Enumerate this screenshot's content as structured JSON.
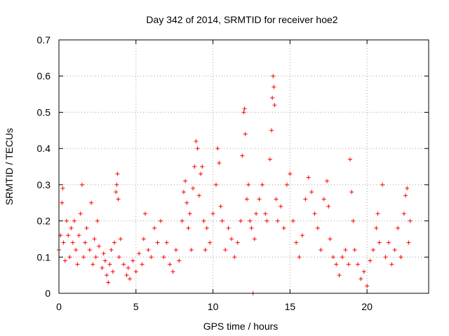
{
  "chart_data": {
    "type": "scatter",
    "title": "Day 342 of 2014, SRMTID for receiver hoe2",
    "xlabel": "GPS time / hours",
    "ylabel": "SRMTID / TECUs",
    "xlim": [
      0,
      24
    ],
    "ylim": [
      0,
      0.7
    ],
    "xticks": [
      0,
      5,
      10,
      15,
      20
    ],
    "xtick_labels": [
      "0",
      "5",
      "10",
      "15",
      "20"
    ],
    "yticks": [
      0,
      0.1,
      0.2,
      0.3,
      0.4,
      0.5,
      0.6,
      0.7
    ],
    "ytick_labels": [
      "0",
      "0.1",
      "0.2",
      "0.3",
      "0.4",
      "0.5",
      "0.6",
      "0.7"
    ],
    "grid": true,
    "marker": "+",
    "marker_color": "#ff0000",
    "data_x_range": [
      0,
      22.8
    ],
    "series": [
      {
        "name": "SRMTID",
        "points": [
          [
            0.0,
            0.12
          ],
          [
            0.1,
            0.16
          ],
          [
            0.2,
            0.25
          ],
          [
            0.25,
            0.29
          ],
          [
            0.3,
            0.14
          ],
          [
            0.4,
            0.09
          ],
          [
            0.5,
            0.2
          ],
          [
            0.6,
            0.16
          ],
          [
            0.7,
            0.1
          ],
          [
            0.8,
            0.18
          ],
          [
            0.9,
            0.14
          ],
          [
            1.0,
            0.2
          ],
          [
            1.1,
            0.12
          ],
          [
            1.2,
            0.08
          ],
          [
            1.3,
            0.16
          ],
          [
            1.4,
            0.22
          ],
          [
            1.5,
            0.3
          ],
          [
            1.6,
            0.1
          ],
          [
            1.7,
            0.14
          ],
          [
            1.8,
            0.18
          ],
          [
            2.0,
            0.12
          ],
          [
            2.1,
            0.25
          ],
          [
            2.2,
            0.08
          ],
          [
            2.3,
            0.15
          ],
          [
            2.4,
            0.1
          ],
          [
            2.5,
            0.2
          ],
          [
            2.6,
            0.13
          ],
          [
            2.8,
            0.07
          ],
          [
            2.9,
            0.11
          ],
          [
            3.0,
            0.09
          ],
          [
            3.1,
            0.05
          ],
          [
            3.2,
            0.03
          ],
          [
            3.3,
            0.08
          ],
          [
            3.4,
            0.12
          ],
          [
            3.5,
            0.06
          ],
          [
            3.6,
            0.14
          ],
          [
            3.7,
            0.28
          ],
          [
            3.75,
            0.3
          ],
          [
            3.8,
            0.33
          ],
          [
            3.85,
            0.26
          ],
          [
            3.9,
            0.1
          ],
          [
            4.0,
            0.15
          ],
          [
            4.2,
            0.08
          ],
          [
            4.4,
            0.05
          ],
          [
            4.5,
            0.07
          ],
          [
            4.6,
            0.04
          ],
          [
            4.8,
            0.09
          ],
          [
            5.0,
            0.06
          ],
          [
            5.2,
            0.11
          ],
          [
            5.4,
            0.08
          ],
          [
            5.5,
            0.15
          ],
          [
            5.6,
            0.22
          ],
          [
            5.8,
            0.12
          ],
          [
            6.0,
            0.1
          ],
          [
            6.2,
            0.18
          ],
          [
            6.4,
            0.14
          ],
          [
            6.6,
            0.2
          ],
          [
            6.8,
            0.1
          ],
          [
            7.0,
            0.14
          ],
          [
            7.2,
            0.08
          ],
          [
            7.4,
            0.06
          ],
          [
            7.6,
            0.12
          ],
          [
            7.8,
            0.09
          ],
          [
            8.0,
            0.2
          ],
          [
            8.1,
            0.28
          ],
          [
            8.2,
            0.31
          ],
          [
            8.3,
            0.25
          ],
          [
            8.4,
            0.18
          ],
          [
            8.5,
            0.22
          ],
          [
            8.6,
            0.12
          ],
          [
            8.7,
            0.29
          ],
          [
            8.8,
            0.35
          ],
          [
            8.9,
            0.42
          ],
          [
            9.0,
            0.4
          ],
          [
            9.1,
            0.27
          ],
          [
            9.2,
            0.33
          ],
          [
            9.3,
            0.35
          ],
          [
            9.4,
            0.2
          ],
          [
            9.5,
            0.12
          ],
          [
            9.6,
            0.18
          ],
          [
            9.8,
            0.14
          ],
          [
            10.0,
            0.22
          ],
          [
            10.2,
            0.3
          ],
          [
            10.3,
            0.4
          ],
          [
            10.4,
            0.36
          ],
          [
            10.5,
            0.24
          ],
          [
            10.6,
            0.2
          ],
          [
            10.8,
            0.12
          ],
          [
            11.0,
            0.18
          ],
          [
            11.2,
            0.15
          ],
          [
            11.4,
            0.1
          ],
          [
            11.6,
            0.14
          ],
          [
            11.8,
            0.2
          ],
          [
            11.9,
            0.38
          ],
          [
            12.0,
            0.5
          ],
          [
            12.05,
            0.51
          ],
          [
            12.1,
            0.44
          ],
          [
            12.2,
            0.26
          ],
          [
            12.3,
            0.3
          ],
          [
            12.4,
            0.2
          ],
          [
            12.5,
            0.18
          ],
          [
            12.6,
            0.0
          ],
          [
            12.7,
            0.15
          ],
          [
            12.8,
            0.22
          ],
          [
            13.0,
            0.26
          ],
          [
            13.2,
            0.3
          ],
          [
            13.4,
            0.22
          ],
          [
            13.5,
            0.2
          ],
          [
            13.7,
            0.37
          ],
          [
            13.8,
            0.45
          ],
          [
            13.85,
            0.54
          ],
          [
            13.9,
            0.6
          ],
          [
            13.95,
            0.57
          ],
          [
            14.0,
            0.52
          ],
          [
            14.1,
            0.26
          ],
          [
            14.2,
            0.2
          ],
          [
            14.4,
            0.24
          ],
          [
            14.6,
            0.18
          ],
          [
            14.8,
            0.3
          ],
          [
            15.0,
            0.33
          ],
          [
            15.2,
            0.2
          ],
          [
            15.4,
            0.14
          ],
          [
            15.6,
            0.1
          ],
          [
            15.8,
            0.16
          ],
          [
            16.0,
            0.26
          ],
          [
            16.2,
            0.32
          ],
          [
            16.4,
            0.28
          ],
          [
            16.6,
            0.22
          ],
          [
            16.8,
            0.18
          ],
          [
            17.0,
            0.12
          ],
          [
            17.2,
            0.26
          ],
          [
            17.4,
            0.31
          ],
          [
            17.5,
            0.24
          ],
          [
            17.6,
            0.15
          ],
          [
            17.8,
            0.1
          ],
          [
            18.0,
            0.08
          ],
          [
            18.2,
            0.05
          ],
          [
            18.4,
            0.1
          ],
          [
            18.6,
            0.12
          ],
          [
            18.8,
            0.08
          ],
          [
            18.9,
            0.37
          ],
          [
            19.0,
            0.28
          ],
          [
            19.1,
            0.2
          ],
          [
            19.2,
            0.12
          ],
          [
            19.4,
            0.08
          ],
          [
            19.6,
            0.04
          ],
          [
            19.8,
            0.06
          ],
          [
            20.0,
            0.02
          ],
          [
            20.2,
            0.09
          ],
          [
            20.4,
            0.12
          ],
          [
            20.6,
            0.18
          ],
          [
            20.7,
            0.22
          ],
          [
            20.8,
            0.14
          ],
          [
            21.0,
            0.3
          ],
          [
            21.2,
            0.1
          ],
          [
            21.4,
            0.14
          ],
          [
            21.6,
            0.08
          ],
          [
            21.8,
            0.12
          ],
          [
            22.0,
            0.18
          ],
          [
            22.2,
            0.1
          ],
          [
            22.4,
            0.22
          ],
          [
            22.5,
            0.27
          ],
          [
            22.6,
            0.29
          ],
          [
            22.7,
            0.14
          ],
          [
            22.8,
            0.2
          ]
        ]
      }
    ]
  }
}
